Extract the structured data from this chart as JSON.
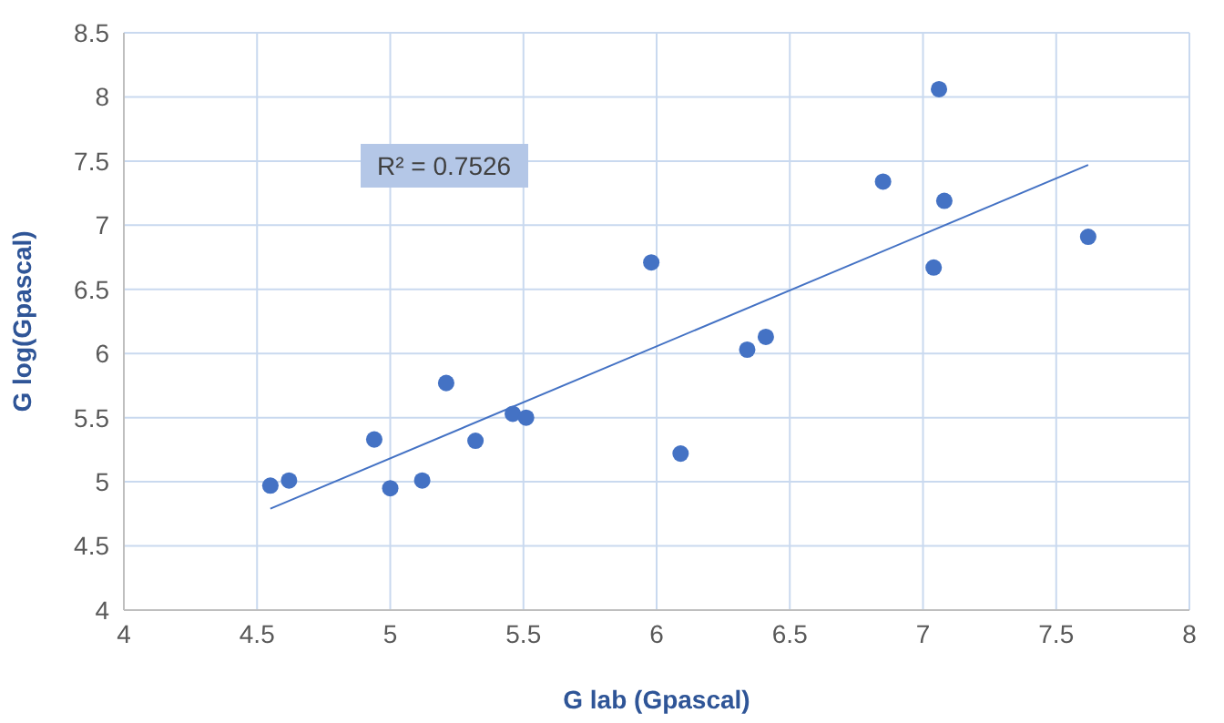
{
  "chart_data": {
    "type": "scatter",
    "xlabel": "G lab (Gpascal)",
    "ylabel": "G log(Gpascal)",
    "xlim": [
      4,
      8
    ],
    "xticks": [
      4,
      4.5,
      5,
      5.5,
      6,
      6.5,
      7,
      7.5,
      8
    ],
    "ylim": [
      4,
      8.5
    ],
    "yticks": [
      4,
      4.5,
      5,
      5.5,
      6,
      6.5,
      7,
      7.5,
      8,
      8.5
    ],
    "grid": true,
    "marker": "circle",
    "annotations": [
      "R² = 0.7526"
    ],
    "series": [
      {
        "color": "#4472c4",
        "x": [
          4.55,
          4.62,
          4.94,
          5.0,
          5.12,
          5.21,
          5.32,
          5.46,
          5.51,
          5.98,
          6.09,
          6.34,
          6.41,
          6.85,
          7.06,
          7.08,
          7.04,
          7.62
        ],
        "values": [
          4.97,
          5.01,
          5.33,
          4.95,
          5.01,
          5.77,
          5.32,
          5.53,
          5.5,
          6.71,
          5.22,
          6.03,
          6.13,
          7.34,
          8.06,
          7.19,
          6.67,
          6.91
        ]
      },
      {
        "type": "line",
        "marker": "none",
        "color": "#4472c4",
        "x": [
          4.55,
          7.62
        ],
        "values": [
          4.79,
          7.47
        ]
      }
    ]
  }
}
